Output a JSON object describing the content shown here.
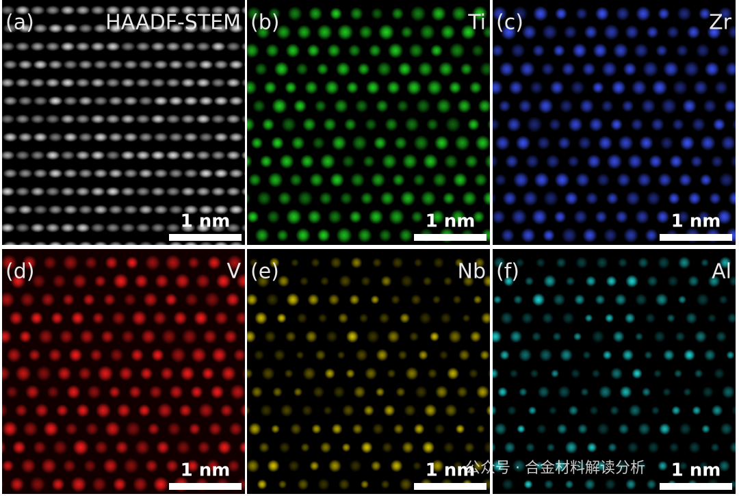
{
  "panels": [
    {
      "label": "(a)",
      "element": "HAADF-STEM",
      "scale_bar": "1 nm"
    },
    {
      "label": "(b)",
      "element": "Ti",
      "scale_bar": "1 nm"
    },
    {
      "label": "(c)",
      "element": "Zr",
      "scale_bar": "1 nm"
    },
    {
      "label": "(d)",
      "element": "V",
      "scale_bar": "1 nm"
    },
    {
      "label": "(e)",
      "element": "Nb",
      "scale_bar": "1 nm"
    },
    {
      "label": "(f)",
      "element": "Al",
      "scale_bar": "1 nm"
    }
  ],
  "watermark": "公众号 · 合金材料解读分析"
}
